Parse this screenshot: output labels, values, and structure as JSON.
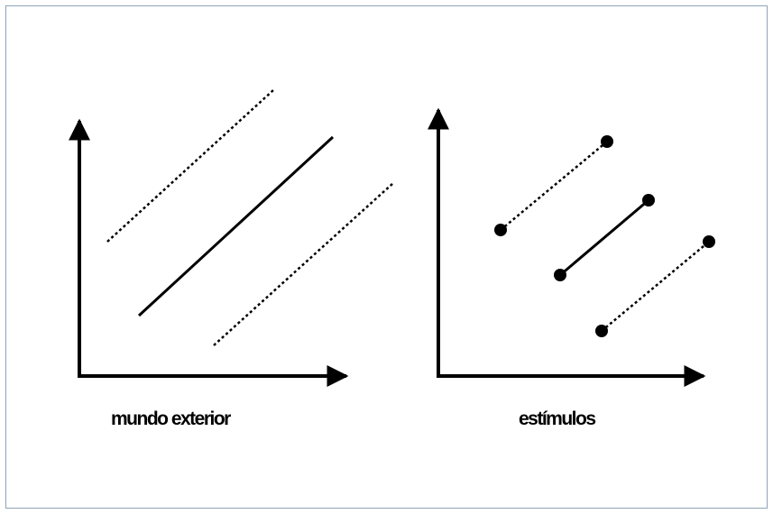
{
  "panels": {
    "left": {
      "caption": "mundo exterior"
    },
    "right": {
      "caption": "estímulos"
    }
  },
  "colors": {
    "ink": "#000000",
    "frame_border": "#8fa4b8",
    "background": "#ffffff"
  }
}
